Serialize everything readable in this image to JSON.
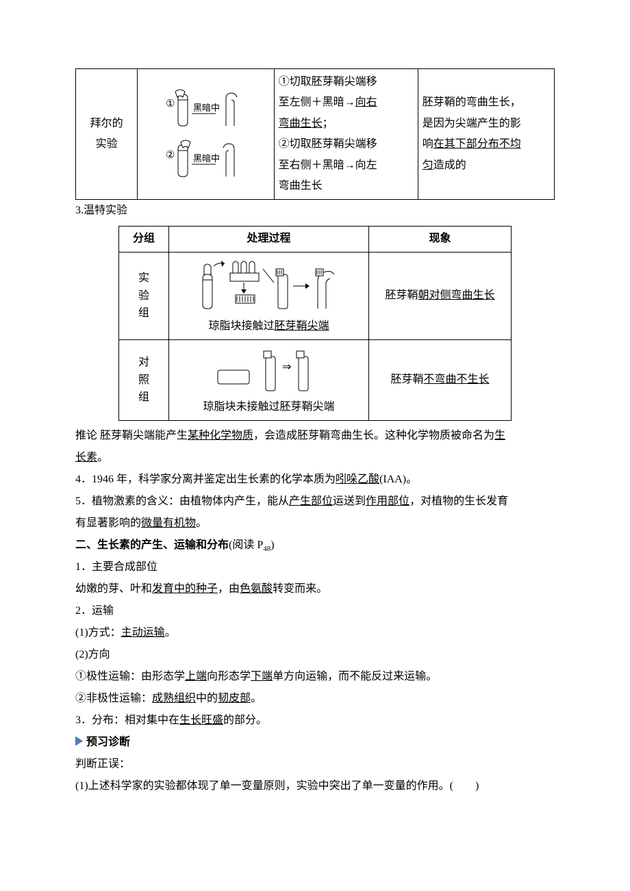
{
  "colors": {
    "text": "#000000",
    "background": "#ffffff",
    "table_border": "#000000",
    "arrow_blue": "#4a7cc4",
    "diagram_stroke": "#000000",
    "diagram_fill": "#ffffff"
  },
  "typography": {
    "body_font": "SimSun",
    "heading_font": "SimHei",
    "body_size_pt": 12,
    "line_height": 2.0
  },
  "table1": {
    "row_label": "拜尔的\n实验",
    "diagram": {
      "label1": "①",
      "label2": "②",
      "dark_label": "黑暗中"
    },
    "process": {
      "l1": "①切取胚芽鞘尖端移",
      "l2_a": "至左侧＋黑暗→",
      "l2_b": "向右",
      "l3": "弯曲生长",
      "l3_tail": "；",
      "l4": "②切取胚芽鞘尖端移",
      "l5": "至右侧＋黑暗→向左",
      "l6": "弯曲生长"
    },
    "conclusion": {
      "l1": "胚芽鞘的弯曲生长，",
      "l2": "是因为尖端产生的影",
      "l3_a": "响",
      "l3_b": "在其下部分布不均",
      "l4_a": "匀",
      "l4_b": "造成的"
    }
  },
  "line_wt_heading": "3.温特实验",
  "table2": {
    "headers": {
      "group": "分组",
      "process": "处理过程",
      "phenomenon": "现象"
    },
    "rows": [
      {
        "group": "实\n验\n组",
        "caption_a": "琼脂块接触过",
        "caption_b": "胚芽鞘尖端",
        "phen_a": "胚芽鞘",
        "phen_b": "朝对侧弯曲生长"
      },
      {
        "group": "对\n照\n组",
        "caption": "琼脂块未接触过胚芽鞘尖端",
        "phen_a": "胚芽鞘",
        "phen_b": "不弯曲不生长"
      }
    ]
  },
  "conclusion_line": {
    "pre": "推论 胚芽鞘尖端能产生",
    "u1": "某种化学物质",
    "mid": "，会造成胚芽鞘弯曲生长。这种化学物质被命名为",
    "u2": "生",
    "u2b": "长素",
    "tail": "。"
  },
  "item4": {
    "pre": "4．1946 年，科学家分离并鉴定出生长素的化学本质为",
    "u": "吲哚乙酸",
    "tail": "(IAA)。"
  },
  "item5_l1": {
    "pre": "5．植物激素的含义：由植物体内产生，能从",
    "u1": "产生部位",
    "mid1": "运送到",
    "u2": "作用部位",
    "tail": "，对植物的生长发育"
  },
  "item5_l2": {
    "pre": "有显著影响的",
    "u": "微量有机物",
    "tail": "。"
  },
  "section2_title_a": "二、生长素的产生、运输和分布",
  "section2_title_b": "(阅读 P",
  "section2_title_sub": "48",
  "section2_title_c": ")",
  "s2_1": "1．主要合成部位",
  "s2_1_line": {
    "pre": "幼嫩的芽、叶和",
    "u1": "发育中的种子",
    "mid": "，由",
    "u2": "色氨酸",
    "tail": "转变而来。"
  },
  "s2_2": "2．运输",
  "s2_2_1": {
    "pre": "(1)方式：",
    "u": "主动运输",
    "tail": "。"
  },
  "s2_2_2": "(2)方向",
  "s2_2_2_a": {
    "pre": "①极性运输：由形态学",
    "u1": "上端",
    "mid": "向形态学",
    "u2": "下端",
    "tail": "单方向运输，而不能反过来运输。"
  },
  "s2_2_2_b": {
    "pre": "②非极性运输：",
    "u1": "成熟组织",
    "mid": "中的",
    "u2": "韧皮部",
    "tail": "。"
  },
  "s2_3": {
    "pre": "3．分布：相对集中在",
    "u": "生长旺盛",
    "tail": "的部分。"
  },
  "diagnose_heading": "预习诊断",
  "diagnose_lead": "判断正误：",
  "diagnose_q1": "(1)上述科学家的实验都体现了单一变量原则，实验中突出了单一变量的作用。(　　)"
}
